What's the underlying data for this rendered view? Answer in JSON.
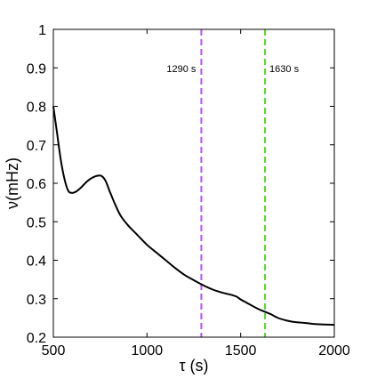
{
  "chart_data": {
    "type": "line",
    "title": "",
    "xlabel": "τ (s)",
    "ylabel": "ν(mHz)",
    "xlim": [
      500,
      2000
    ],
    "ylim": [
      0.2,
      1.0
    ],
    "x_ticks": [
      500,
      1000,
      1500,
      2000
    ],
    "y_ticks": [
      0.2,
      0.3,
      0.4,
      0.5,
      0.6,
      0.7,
      0.8,
      0.9,
      1.0
    ],
    "x_tick_labels": [
      "500",
      "1000",
      "1500",
      "2000"
    ],
    "y_tick_labels": [
      "0.2",
      "0.3",
      "0.4",
      "0.5",
      "0.6",
      "0.7",
      "0.8",
      "0.9",
      "1"
    ],
    "grid": false,
    "series": [
      {
        "color": "#000000",
        "x": [
          500,
          520,
          540,
          560,
          580,
          600,
          620,
          650,
          680,
          710,
          740,
          760,
          780,
          800,
          830,
          860,
          900,
          950,
          1000,
          1050,
          1100,
          1150,
          1200,
          1250,
          1300,
          1350,
          1400,
          1450,
          1480,
          1500,
          1530,
          1560,
          1600,
          1630,
          1660,
          1700,
          1740,
          1780,
          1820,
          1860,
          1900,
          1950,
          2000
        ],
        "y": [
          0.8,
          0.73,
          0.66,
          0.61,
          0.58,
          0.575,
          0.578,
          0.59,
          0.605,
          0.615,
          0.62,
          0.618,
          0.605,
          0.58,
          0.545,
          0.515,
          0.49,
          0.465,
          0.44,
          0.42,
          0.4,
          0.38,
          0.362,
          0.348,
          0.335,
          0.324,
          0.316,
          0.31,
          0.305,
          0.298,
          0.29,
          0.282,
          0.272,
          0.266,
          0.26,
          0.25,
          0.244,
          0.24,
          0.238,
          0.236,
          0.234,
          0.233,
          0.232
        ]
      }
    ],
    "vlines": [
      {
        "x": 1290,
        "label": "1290 s",
        "color": "#b84dff"
      },
      {
        "x": 1630,
        "label": "1630 s",
        "color": "#5bd62a"
      }
    ]
  }
}
